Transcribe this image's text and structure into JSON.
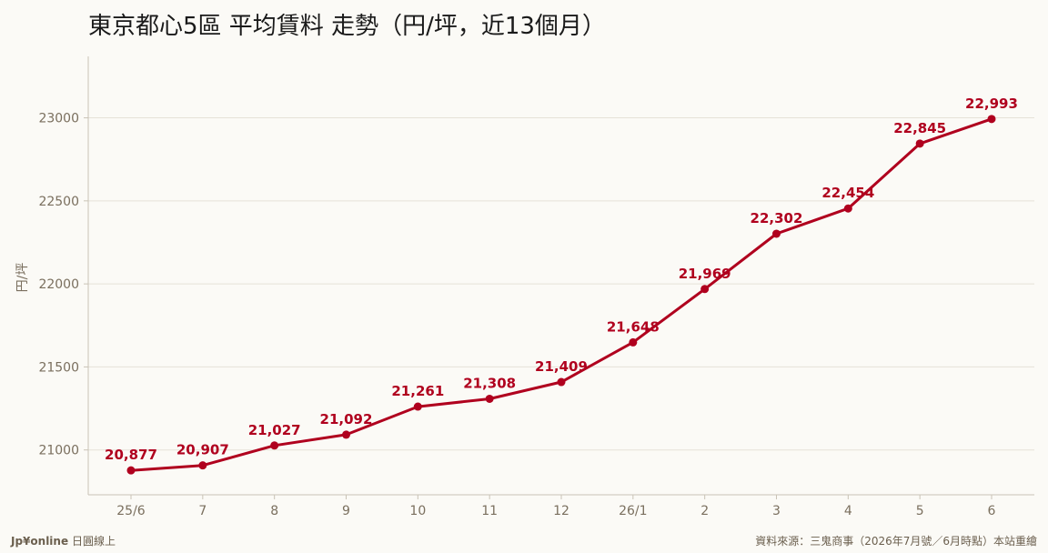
{
  "chart_data": {
    "type": "line",
    "title": "東京都心5區 平均賃料 走勢（円/坪，近13個月）",
    "ylabel": "円/坪",
    "xlabel": "",
    "categories": [
      "25/6",
      "7",
      "8",
      "9",
      "10",
      "11",
      "12",
      "26/1",
      "2",
      "3",
      "4",
      "5",
      "6"
    ],
    "series": [
      {
        "values": [
          20877,
          20907,
          21027,
          21092,
          21261,
          21308,
          21409,
          21648,
          21969,
          22302,
          22454,
          22845,
          22993
        ],
        "labels": [
          "20,877",
          "20,907",
          "21,027",
          "21,092",
          "21,261",
          "21,308",
          "21,409",
          "21,648",
          "21,969",
          "22,302",
          "22,454",
          "22,845",
          "22,993"
        ],
        "color": "#b0001e"
      }
    ],
    "yticks": [
      21000,
      21500,
      22000,
      22500,
      23000
    ],
    "ylim": [
      20730,
      23370
    ],
    "grid": true,
    "legend": "none"
  },
  "footer": {
    "brand": "Jp¥online",
    "brand_suffix": "日圓線上",
    "source": "資料來源：三鬼商事（2026年7月號／6月時點）本站重繪"
  }
}
